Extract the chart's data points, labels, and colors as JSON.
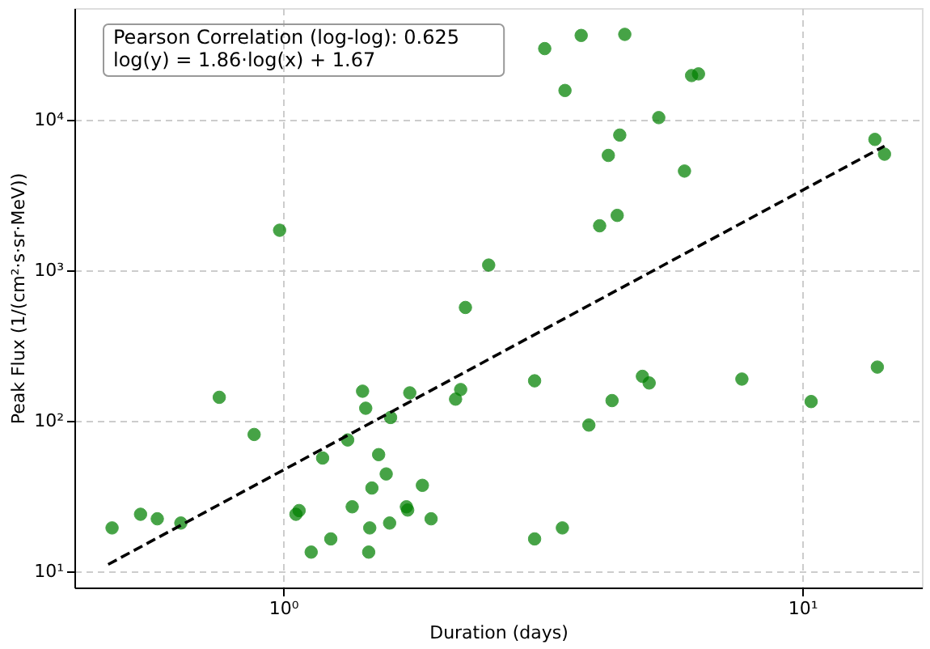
{
  "chart_data": {
    "type": "scatter",
    "xlabel": "Duration (days)",
    "ylabel": "Peak Flux (1/(cm²·s·sr·MeV))",
    "annotations": [
      "Pearson Correlation (log-log): 0.625",
      "log(y) = 1.86·log(x) + 1.67"
    ],
    "log": "xy",
    "grid": true,
    "marker": "circle",
    "xlim": [
      0.396,
      17.0
    ],
    "ylim": [
      7.8,
      55000
    ],
    "xticks": [
      {
        "value": 1,
        "label": "10⁰"
      },
      {
        "value": 10,
        "label": "10¹"
      }
    ],
    "yticks": [
      {
        "value": 10,
        "label": "10¹"
      },
      {
        "value": 100,
        "label": "10²"
      },
      {
        "value": 1000,
        "label": "10³"
      },
      {
        "value": 10000,
        "label": "10⁴"
      }
    ],
    "series": [
      {
        "color": "#008000",
        "x": [
          0.468,
          0.531,
          0.572,
          0.635,
          0.753,
          0.879,
          0.984,
          1.058,
          1.073,
          1.132,
          1.191,
          1.235,
          1.331,
          1.358,
          1.422,
          1.442,
          1.461,
          1.468,
          1.482,
          1.527,
          1.579,
          1.603,
          1.61,
          1.727,
          1.737,
          1.753,
          1.854,
          1.927,
          2.148,
          2.197,
          2.244,
          2.488,
          3.19,
          3.75,
          4.55,
          3.49,
          6.12,
          6.31,
          5.29,
          4.45,
          4.23,
          5.93,
          4.07,
          4.4,
          3.05,
          4.92,
          5.07,
          4.3,
          3.88,
          7.65,
          10.4,
          13.95,
          13.8,
          14.4,
          3.05,
          3.45
        ],
        "values": [
          19.4,
          23.9,
          22.3,
          20.9,
          143,
          81,
          1840,
          23.9,
          25.3,
          13.4,
          56.5,
          16.4,
          74.5,
          26.8,
          157,
          121,
          13.4,
          19.4,
          35.7,
          59.5,
          44.3,
          20.9,
          105,
          26.8,
          25.5,
          153,
          37.2,
          22.3,
          139,
          161,
          565,
          1080,
          29600,
          36200,
          36800,
          15600,
          19600,
          20100,
          10300,
          7890,
          5780,
          4550,
          1970,
          2310,
          184,
          197,
          178,
          136,
          93.5,
          189,
          134,
          227,
          7380,
          5890,
          16.4,
          19.4
        ]
      },
      {
        "type": "line",
        "color": "#000000",
        "line_style": "dashed",
        "marker": "none",
        "x": [
          0.46,
          14.4
        ],
        "values": [
          11.1,
          6670
        ]
      }
    ]
  }
}
